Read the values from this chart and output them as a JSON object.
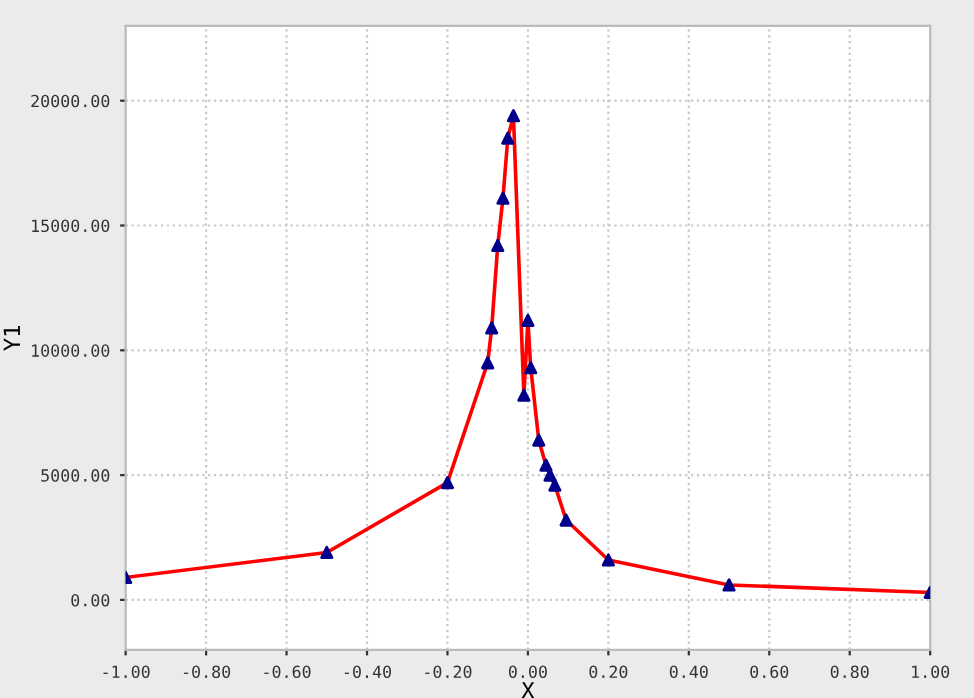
{
  "chart_data": {
    "type": "line",
    "xlabel": "X",
    "ylabel": "Y1",
    "x": [
      -1.0,
      -0.5,
      -0.2,
      -0.1,
      -0.09,
      -0.075,
      -0.062,
      -0.05,
      -0.036,
      -0.01,
      0.0,
      0.007,
      0.027,
      0.045,
      0.055,
      0.067,
      0.095,
      0.2,
      0.5,
      1.0
    ],
    "series": [
      {
        "color": "#ff0000",
        "values": [
          900,
          1900,
          4700,
          9500,
          10900,
          14200,
          16100,
          18500,
          19400,
          8200,
          11200,
          9300,
          6400,
          5400,
          5000,
          4600,
          3200,
          1600,
          600,
          300
        ]
      }
    ],
    "marker": "triangle",
    "xlim": [
      -1.0,
      1.0
    ],
    "ylim": [
      -2000,
      23000
    ],
    "xticks": [
      {
        "value": -1.0,
        "label": "-1.00"
      },
      {
        "value": -0.8,
        "label": "-0.80"
      },
      {
        "value": -0.6,
        "label": "-0.60"
      },
      {
        "value": -0.4,
        "label": "-0.40"
      },
      {
        "value": -0.2,
        "label": "-0.20"
      },
      {
        "value": 0.0,
        "label": "0.00"
      },
      {
        "value": 0.2,
        "label": "0.20"
      },
      {
        "value": 0.4,
        "label": "0.40"
      },
      {
        "value": 0.6,
        "label": "0.60"
      },
      {
        "value": 0.8,
        "label": "0.80"
      },
      {
        "value": 1.0,
        "label": "1.00"
      }
    ],
    "yticks": [
      {
        "value": 0,
        "label": "0.00"
      },
      {
        "value": 5000,
        "label": "5000.00"
      },
      {
        "value": 10000,
        "label": "10000.00"
      },
      {
        "value": 15000,
        "label": "15000.00"
      },
      {
        "value": 20000,
        "label": "20000.00"
      }
    ],
    "grid": true,
    "legend": false
  }
}
